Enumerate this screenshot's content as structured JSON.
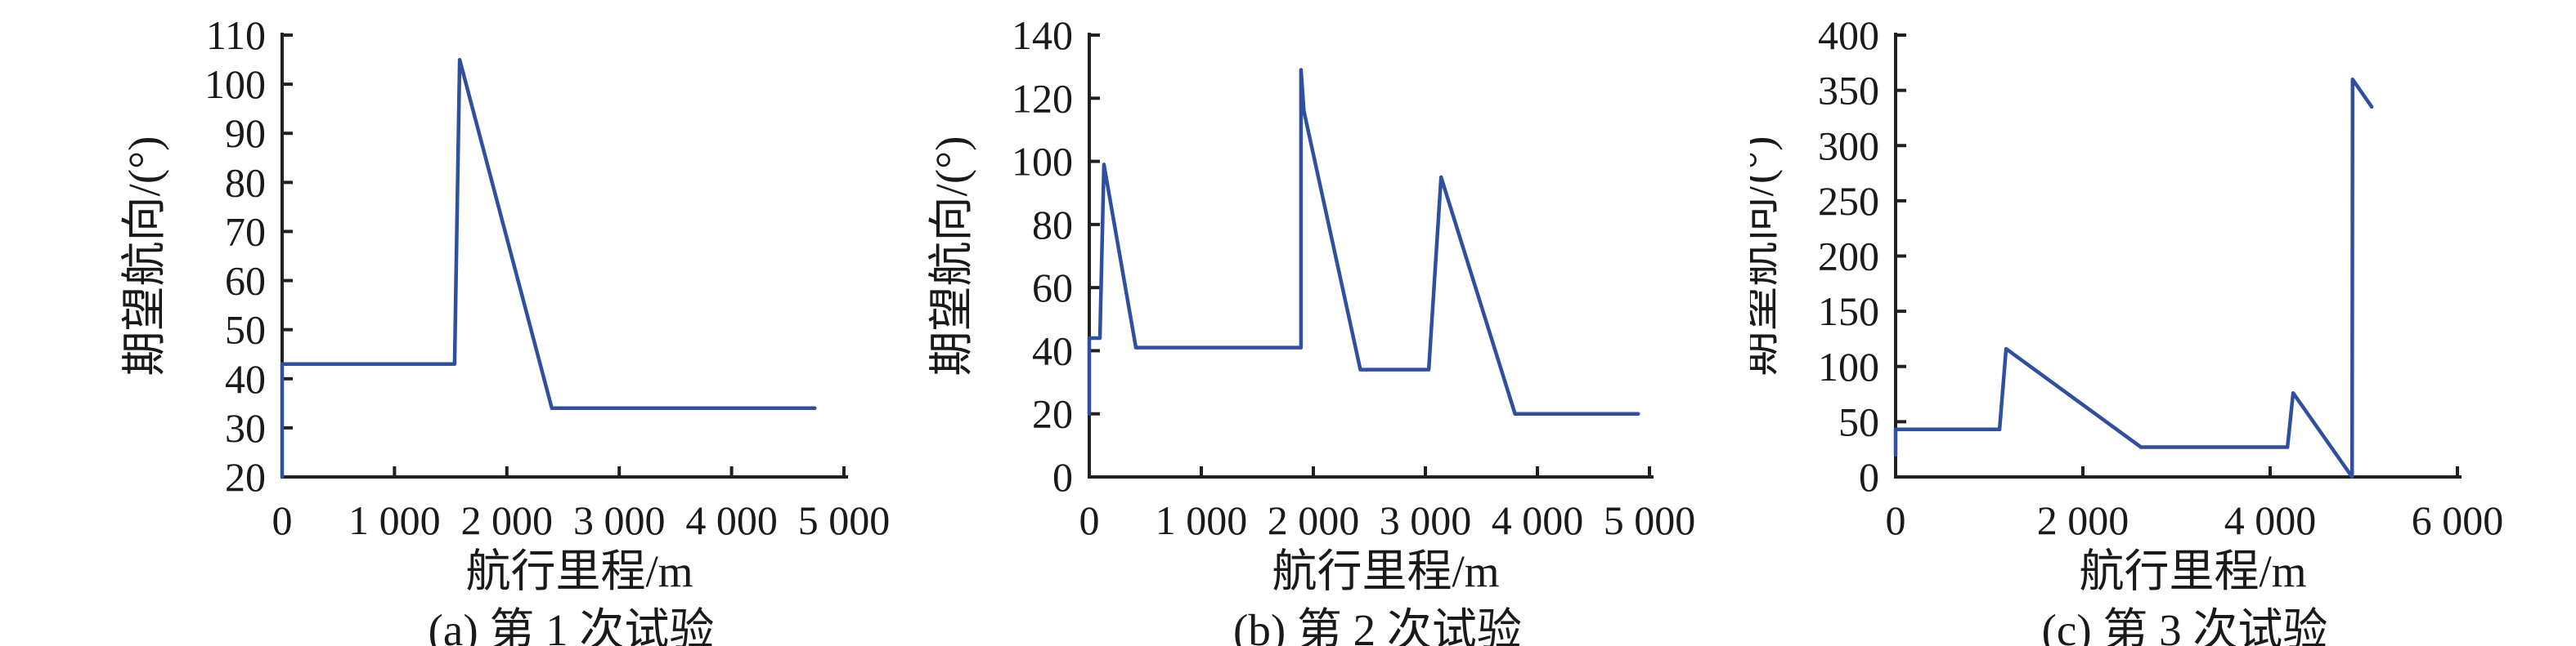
{
  "figure": {
    "background": "#ffffff",
    "line_color": "#2f4fa0",
    "axis_color": "#231f20",
    "text_color": "#1a1a1a"
  },
  "chart_data": [
    {
      "type": "line",
      "caption": "(a) 第 1 次试验",
      "xlabel": "航行里程/m",
      "ylabel": "期望航向/(°)",
      "xlim": [
        0,
        5000
      ],
      "ylim": [
        20,
        110
      ],
      "xticks": [
        0,
        1000,
        2000,
        3000,
        4000,
        5000
      ],
      "xtick_labels": [
        "0",
        "1 000",
        "2 000",
        "3 000",
        "4 000",
        "5 000"
      ],
      "yticks": [
        20,
        30,
        40,
        50,
        60,
        70,
        80,
        90,
        100,
        110
      ],
      "ytick_labels": [
        "20",
        "30",
        "40",
        "50",
        "60",
        "70",
        "80",
        "90",
        "100",
        "110"
      ],
      "grid": false,
      "legend": null,
      "series": [
        {
          "name": "期望航向",
          "x": [
            0,
            0,
            1535,
            1580,
            2400,
            4740
          ],
          "y": [
            20,
            43,
            43,
            105,
            34,
            34
          ]
        }
      ]
    },
    {
      "type": "line",
      "caption": "(b) 第 2 次试验",
      "xlabel": "航行里程/m",
      "ylabel": "期望航向/(°)",
      "xlim": [
        0,
        5000
      ],
      "ylim": [
        0,
        140
      ],
      "xticks": [
        0,
        1000,
        2000,
        3000,
        4000,
        5000
      ],
      "xtick_labels": [
        "0",
        "1 000",
        "2 000",
        "3 000",
        "4 000",
        "5 000"
      ],
      "yticks": [
        0,
        20,
        40,
        60,
        80,
        100,
        120,
        140
      ],
      "ytick_labels": [
        "0",
        "20",
        "40",
        "60",
        "80",
        "100",
        "120",
        "140"
      ],
      "grid": false,
      "legend": null,
      "series": [
        {
          "name": "期望航向",
          "x": [
            0,
            0,
            95,
            131,
            416,
            1890,
            1890,
            1915,
            2420,
            3030,
            3140,
            3800,
            4900
          ],
          "y": [
            20,
            44,
            44,
            99,
            41,
            41,
            129,
            116,
            34,
            34,
            95,
            20,
            20
          ]
        }
      ]
    },
    {
      "type": "line",
      "caption": "(c) 第 3 次试验",
      "xlabel": "航行里程/m",
      "ylabel": "期望航向/(°)",
      "xlim": [
        0,
        6000
      ],
      "ylim": [
        0,
        400
      ],
      "xticks": [
        0,
        2000,
        4000,
        6000
      ],
      "xtick_labels": [
        "0",
        "2 000",
        "4 000",
        "6 000"
      ],
      "yticks": [
        0,
        50,
        100,
        150,
        200,
        250,
        300,
        350,
        400
      ],
      "ytick_labels": [
        "0",
        "50",
        "100",
        "150",
        "200",
        "250",
        "300",
        "350",
        "400"
      ],
      "grid": false,
      "legend": null,
      "series": [
        {
          "name": "期望航向",
          "x": [
            0,
            0,
            1110,
            1180,
            2620,
            4185,
            4245,
            4875,
            4880,
            5085
          ],
          "y": [
            20,
            43,
            43,
            116,
            27,
            27,
            76,
            0,
            360,
            335
          ]
        }
      ]
    }
  ]
}
